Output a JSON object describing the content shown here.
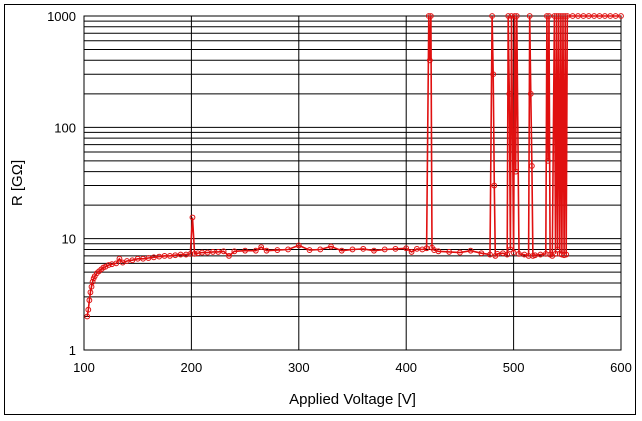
{
  "chart_data": {
    "type": "scatter",
    "title": "",
    "xlabel": "Applied Voltage [V]",
    "ylabel": "R [GΩ]",
    "xlim": [
      100,
      600
    ],
    "ylim": [
      1,
      1000
    ],
    "y_scale": "log",
    "x_ticks": [
      100,
      200,
      300,
      400,
      500,
      600
    ],
    "x_tick_labels": [
      "100",
      "200",
      "300",
      "400",
      "500",
      "600"
    ],
    "y_ticks": [
      1,
      10,
      100,
      1000
    ],
    "y_tick_labels": [
      "1",
      "10",
      "100",
      "1000"
    ],
    "grid": true,
    "legend": "none",
    "series_color": "#e01010",
    "x": [
      103,
      104,
      105,
      106,
      107,
      108,
      109,
      110,
      112,
      114,
      116,
      118,
      120,
      123,
      126,
      130,
      133,
      136,
      140,
      145,
      150,
      155,
      160,
      165,
      170,
      175,
      180,
      185,
      190,
      195,
      199,
      201,
      203,
      206,
      210,
      215,
      220,
      225,
      230,
      235,
      240,
      250,
      260,
      265,
      270,
      280,
      290,
      300,
      310,
      320,
      330,
      340,
      350,
      360,
      370,
      380,
      390,
      400,
      405,
      410,
      415,
      419,
      421,
      422,
      423,
      424,
      426,
      430,
      440,
      450,
      460,
      470,
      478,
      480,
      481,
      482,
      483,
      485,
      490,
      494,
      495,
      496,
      497,
      498,
      500,
      501,
      502,
      503,
      505,
      510,
      514,
      515,
      516,
      517,
      518,
      520,
      525,
      530,
      531,
      532,
      533,
      534,
      536,
      538,
      539,
      540,
      541,
      542,
      543,
      544,
      545,
      546,
      547,
      548,
      549,
      550,
      555,
      560,
      565,
      570,
      575,
      580,
      585,
      590,
      595,
      600
    ],
    "y": [
      2.0,
      2.3,
      2.8,
      3.3,
      3.7,
      4.1,
      4.4,
      4.6,
      4.9,
      5.1,
      5.3,
      5.5,
      5.6,
      5.8,
      5.9,
      6.0,
      6.6,
      6.1,
      6.3,
      6.4,
      6.6,
      6.6,
      6.7,
      6.8,
      6.9,
      7.0,
      7.0,
      7.1,
      7.2,
      7.2,
      7.3,
      15.5,
      7.3,
      7.4,
      7.5,
      7.5,
      7.6,
      7.6,
      7.7,
      7.0,
      7.7,
      7.8,
      7.8,
      8.4,
      7.8,
      7.9,
      8.0,
      8.7,
      7.9,
      8.0,
      8.5,
      7.8,
      8.0,
      8.1,
      7.8,
      8.0,
      8.1,
      8.2,
      7.6,
      8.1,
      8.0,
      8.2,
      1000,
      400,
      1000,
      8.3,
      7.9,
      7.7,
      7.6,
      7.5,
      7.8,
      7.4,
      7.2,
      1000,
      300,
      30,
      7.0,
      7.3,
      7.4,
      7.2,
      1000,
      200,
      8.0,
      1000,
      7.5,
      1000,
      40,
      1000,
      7.3,
      7.2,
      7.0,
      1000,
      200,
      45,
      7.0,
      7.1,
      7.2,
      7.3,
      1000,
      50,
      1000,
      7.2,
      7.0,
      1000,
      7.3,
      1000,
      8.0,
      1000,
      7.3,
      1000,
      7.2,
      1000,
      7.1,
      1000,
      7.2,
      1000,
      1000,
      1000,
      1000,
      1000,
      1000,
      1000,
      1000,
      1000,
      1000,
      1000
    ]
  }
}
